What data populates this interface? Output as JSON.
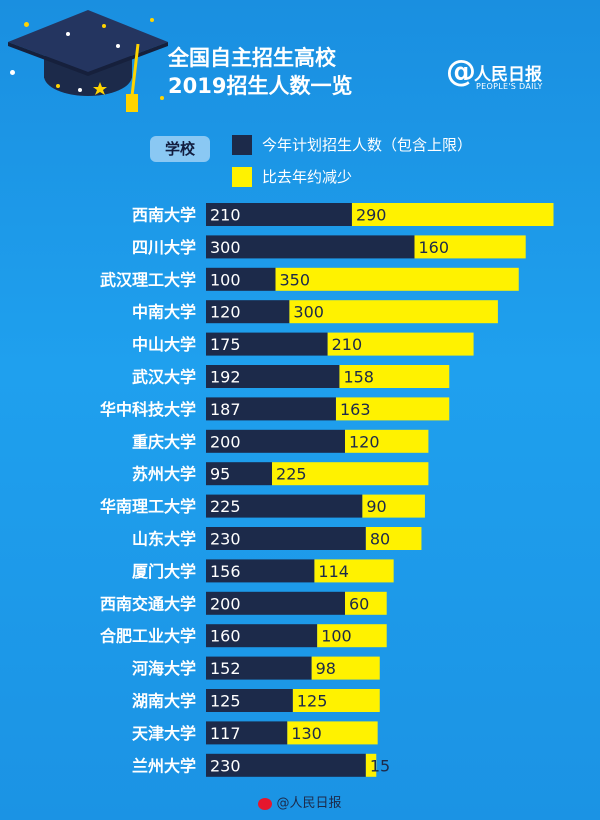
{
  "header": {
    "title_line1": "全国自主招生高校",
    "title_line2": "2019招生人数一览",
    "logo_symbol": "@",
    "logo_name": "人民日报",
    "logo_en": "PEOPLE'S DAILY"
  },
  "legend": {
    "school_tag": "学校",
    "items": [
      {
        "label": "今年计划招生人数（包含上限）",
        "color": "#1c2a4a"
      },
      {
        "label": "比去年约减少",
        "color": "#fff200"
      }
    ]
  },
  "footer": {
    "text": "@人民日报"
  },
  "colors": {
    "planned": "#1c2a4a",
    "reduced": "#fff200",
    "background": "#1a8fe0"
  },
  "icons": [
    "graduation-cap-icon",
    "weibo-icon",
    "at-logo-icon"
  ],
  "chart_data": {
    "type": "bar",
    "orientation": "horizontal",
    "stacked": true,
    "categories": [
      "西南大学",
      "四川大学",
      "武汉理工大学",
      "中南大学",
      "中山大学",
      "武汉大学",
      "华中科技大学",
      "重庆大学",
      "苏州大学",
      "华南理工大学",
      "山东大学",
      "厦门大学",
      "西南交通大学",
      "合肥工业大学",
      "河海大学",
      "湖南大学",
      "天津大学",
      "兰州大学"
    ],
    "series": [
      {
        "name": "今年计划招生人数（包含上限）",
        "values": [
          210,
          300,
          100,
          120,
          175,
          192,
          187,
          200,
          95,
          225,
          230,
          156,
          200,
          160,
          152,
          125,
          117,
          230
        ]
      },
      {
        "name": "比去年约减少",
        "values": [
          290,
          160,
          350,
          300,
          210,
          158,
          163,
          120,
          225,
          90,
          80,
          114,
          60,
          100,
          98,
          125,
          130,
          15
        ]
      }
    ],
    "xlim": [
      0,
      510
    ],
    "grid": false,
    "legend_position": "top"
  }
}
